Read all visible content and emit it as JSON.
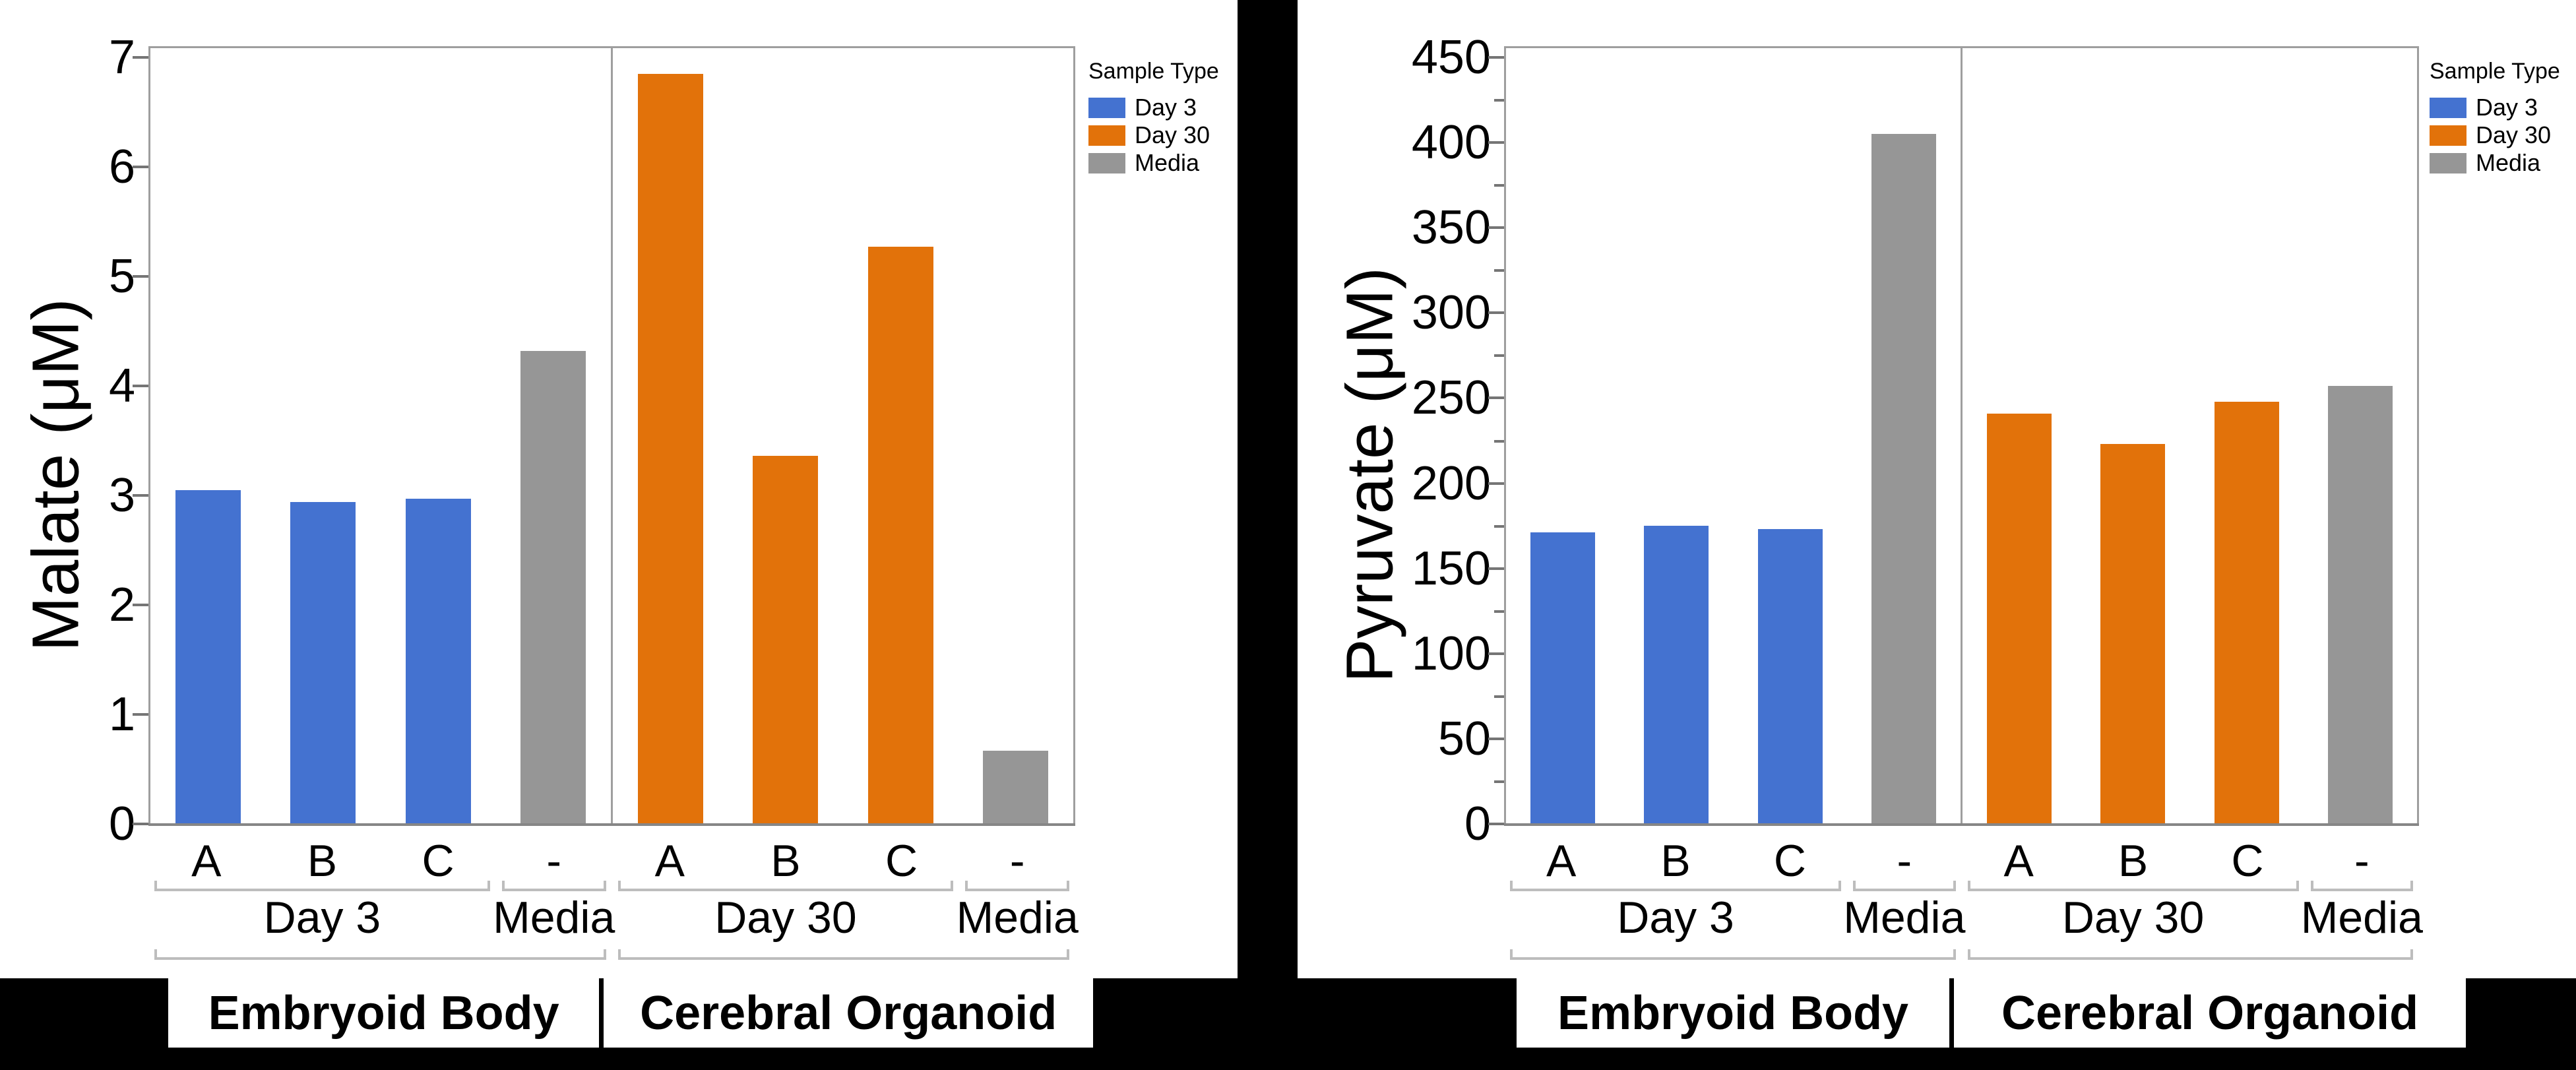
{
  "legend": {
    "title": "Sample Type",
    "items": [
      {
        "label": "Day 3",
        "color": "#4472D0"
      },
      {
        "label": "Day 30",
        "color": "#E2720A"
      },
      {
        "label": "Media",
        "color": "#969696"
      }
    ]
  },
  "colors": {
    "day3_blue": "#4472D0",
    "day30_orange": "#E2720A",
    "media_gray": "#969696",
    "frame_gray": "#9E9E9E",
    "background": "#000000"
  },
  "chart_data": [
    {
      "type": "bar",
      "title": "",
      "xlabel": "",
      "ylabel": "Malate (μM)",
      "ylim": [
        0,
        7
      ],
      "yticks": [
        0,
        1,
        2,
        3,
        4,
        5,
        6,
        7
      ],
      "minor_ytick_step": null,
      "grid": false,
      "legend_position": "right",
      "sections": [
        {
          "section_label": "Embryoid Body",
          "groups": [
            {
              "label": "Day 3",
              "series": "Day 3",
              "categories": [
                "A",
                "B",
                "C"
              ],
              "values": [
                3.05,
                2.94,
                2.97
              ]
            },
            {
              "label": "Media",
              "series": "Media",
              "categories": [
                "-"
              ],
              "values": [
                4.32
              ]
            }
          ]
        },
        {
          "section_label": "Cerebral Organoid",
          "groups": [
            {
              "label": "Day 30",
              "series": "Day 30",
              "categories": [
                "A",
                "B",
                "C"
              ],
              "values": [
                6.85,
                3.36,
                5.27
              ]
            },
            {
              "label": "Media",
              "series": "Media",
              "categories": [
                "-"
              ],
              "values": [
                0.67
              ]
            }
          ]
        }
      ]
    },
    {
      "type": "bar",
      "title": "",
      "xlabel": "",
      "ylabel": "Pyruvate (μM)",
      "ylim": [
        0,
        450
      ],
      "yticks": [
        0,
        50,
        100,
        150,
        200,
        250,
        300,
        350,
        400,
        450
      ],
      "minor_ytick_step": 25,
      "grid": false,
      "legend_position": "right",
      "sections": [
        {
          "section_label": "Embryoid Body",
          "groups": [
            {
              "label": "Day 3",
              "series": "Day 3",
              "categories": [
                "A",
                "B",
                "C"
              ],
              "values": [
                171,
                175,
                173
              ]
            },
            {
              "label": "Media",
              "series": "Media",
              "categories": [
                "-"
              ],
              "values": [
                405
              ]
            }
          ]
        },
        {
          "section_label": "Cerebral Organoid",
          "groups": [
            {
              "label": "Day 30",
              "series": "Day 30",
              "categories": [
                "A",
                "B",
                "C"
              ],
              "values": [
                241,
                223,
                248
              ]
            },
            {
              "label": "Media",
              "series": "Media",
              "categories": [
                "-"
              ],
              "values": [
                257
              ]
            }
          ]
        }
      ]
    }
  ]
}
